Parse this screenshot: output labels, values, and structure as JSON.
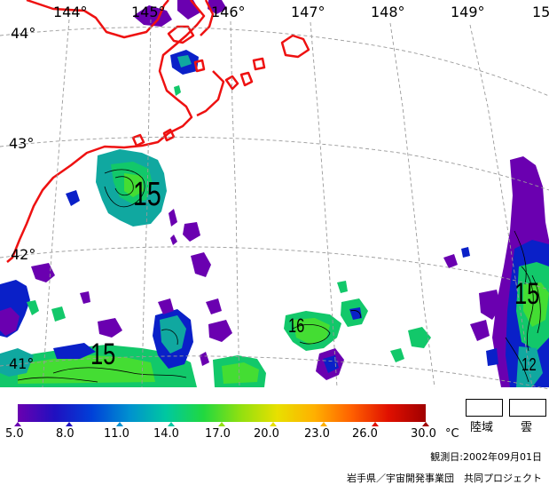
{
  "map": {
    "longitude_labels": [
      "144°",
      "145°",
      "146°",
      "147°",
      "148°",
      "149°",
      "15"
    ],
    "latitude_labels": [
      "44°",
      "43°",
      "42°",
      "41°"
    ],
    "contour_labels": [
      "15",
      "15",
      "16",
      "15",
      "12"
    ],
    "colors": {
      "coastline": "#ee1111",
      "grid": "#9a9a9a",
      "violet": "#6a00b0",
      "blue": "#0a20c8",
      "teal": "#10a8a0",
      "green": "#12c86a",
      "lime": "#44dd33"
    }
  },
  "colorbar": {
    "ticks": [
      "5.0",
      "8.0",
      "11.0",
      "14.0",
      "17.0",
      "20.0",
      "23.0",
      "26.0",
      "30.0"
    ],
    "unit": "°C",
    "colors": [
      "#6a00b0",
      "#2010c0",
      "#0040d8",
      "#0090d0",
      "#00c8a0",
      "#20d840",
      "#90e010",
      "#e8e000",
      "#ffb000",
      "#ff6000",
      "#e01000",
      "#a00000"
    ]
  },
  "legend": {
    "land_label": "陸域",
    "cloud_label": "雲"
  },
  "footer": {
    "observation_date": "観測日:2002年09月01日",
    "credit": "岩手県／宇宙開発事業団　共同プロジェクト"
  }
}
